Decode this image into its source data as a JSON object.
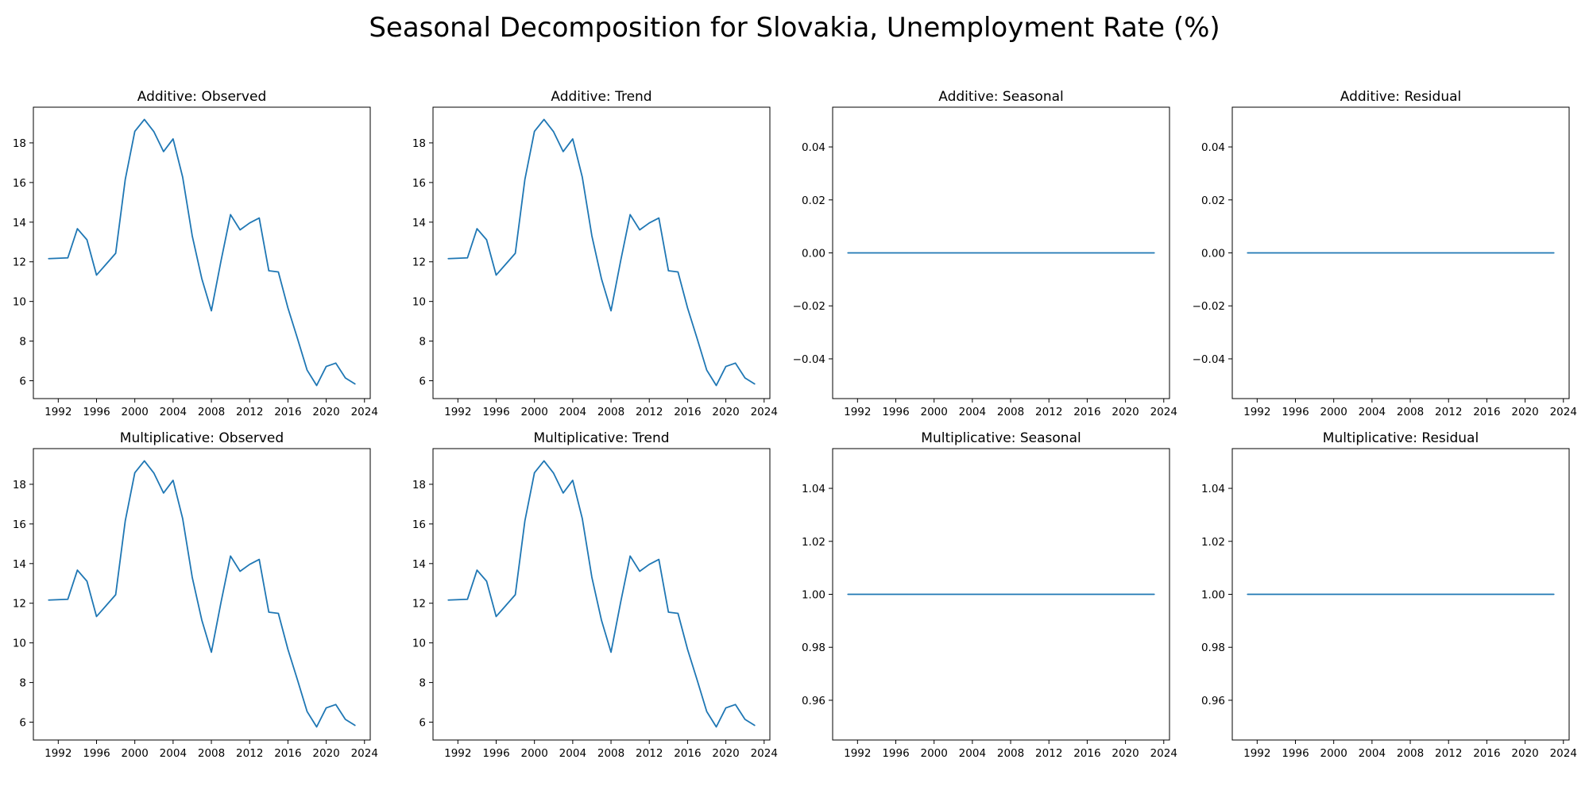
{
  "figure": {
    "title": "Seasonal Decomposition for Slovakia, Unemployment Rate (%)"
  },
  "colors": {
    "line": "#1f77b4"
  },
  "years": [
    1991,
    1992,
    1993,
    1994,
    1995,
    1996,
    1997,
    1998,
    1999,
    2000,
    2001,
    2002,
    2003,
    2004,
    2005,
    2006,
    2007,
    2008,
    2009,
    2010,
    2011,
    2012,
    2013,
    2014,
    2015,
    2016,
    2017,
    2018,
    2019,
    2020,
    2021,
    2022,
    2023
  ],
  "chart_data": [
    {
      "type": "line",
      "title": "Additive: Observed",
      "series": [
        {
          "values": [
            12.16,
            12.18,
            12.2,
            13.67,
            13.11,
            11.33,
            11.88,
            12.43,
            16.15,
            18.58,
            19.18,
            18.56,
            17.56,
            18.2,
            16.27,
            13.31,
            11.15,
            9.53,
            12.03,
            14.38,
            13.61,
            13.96,
            14.21,
            11.55,
            11.49,
            9.67,
            8.13,
            6.54,
            5.76,
            6.72,
            6.89,
            6.14,
            5.84
          ]
        }
      ],
      "ylim": [
        5.1,
        19.8
      ],
      "yticks": [
        6,
        8,
        10,
        12,
        14,
        16,
        18
      ],
      "ytick_labels": [
        "6",
        "8",
        "10",
        "12",
        "14",
        "16",
        "18"
      ],
      "xticks": [
        1992,
        1996,
        2000,
        2004,
        2008,
        2012,
        2016,
        2020,
        2024
      ],
      "xtick_labels": [
        "1992",
        "1996",
        "2000",
        "2004",
        "2008",
        "2012",
        "2016",
        "2020",
        "2024"
      ]
    },
    {
      "type": "line",
      "title": "Additive: Trend",
      "series": [
        {
          "values": [
            12.16,
            12.18,
            12.2,
            13.67,
            13.11,
            11.33,
            11.88,
            12.43,
            16.15,
            18.58,
            19.18,
            18.56,
            17.56,
            18.2,
            16.27,
            13.31,
            11.15,
            9.53,
            12.03,
            14.38,
            13.61,
            13.96,
            14.21,
            11.55,
            11.49,
            9.67,
            8.13,
            6.54,
            5.76,
            6.72,
            6.89,
            6.14,
            5.84
          ]
        }
      ],
      "ylim": [
        5.1,
        19.8
      ],
      "yticks": [
        6,
        8,
        10,
        12,
        14,
        16,
        18
      ],
      "ytick_labels": [
        "6",
        "8",
        "10",
        "12",
        "14",
        "16",
        "18"
      ],
      "xticks": [
        1992,
        1996,
        2000,
        2004,
        2008,
        2012,
        2016,
        2020,
        2024
      ],
      "xtick_labels": [
        "1992",
        "1996",
        "2000",
        "2004",
        "2008",
        "2012",
        "2016",
        "2020",
        "2024"
      ]
    },
    {
      "type": "line",
      "title": "Additive: Seasonal",
      "series": [
        {
          "values": [
            0,
            0,
            0,
            0,
            0,
            0,
            0,
            0,
            0,
            0,
            0,
            0,
            0,
            0,
            0,
            0,
            0,
            0,
            0,
            0,
            0,
            0,
            0,
            0,
            0,
            0,
            0,
            0,
            0,
            0,
            0,
            0,
            0
          ]
        }
      ],
      "ylim": [
        -0.055,
        0.055
      ],
      "yticks": [
        -0.04,
        -0.02,
        0,
        0.02,
        0.04
      ],
      "ytick_labels": [
        "−0.04",
        "−0.02",
        "0.00",
        "0.02",
        "0.04"
      ],
      "xticks": [
        1992,
        1996,
        2000,
        2004,
        2008,
        2012,
        2016,
        2020,
        2024
      ],
      "xtick_labels": [
        "1992",
        "1996",
        "2000",
        "2004",
        "2008",
        "2012",
        "2016",
        "2020",
        "2024"
      ]
    },
    {
      "type": "line",
      "title": "Additive: Residual",
      "series": [
        {
          "values": [
            0,
            0,
            0,
            0,
            0,
            0,
            0,
            0,
            0,
            0,
            0,
            0,
            0,
            0,
            0,
            0,
            0,
            0,
            0,
            0,
            0,
            0,
            0,
            0,
            0,
            0,
            0,
            0,
            0,
            0,
            0,
            0,
            0
          ]
        }
      ],
      "ylim": [
        -0.055,
        0.055
      ],
      "yticks": [
        -0.04,
        -0.02,
        0,
        0.02,
        0.04
      ],
      "ytick_labels": [
        "−0.04",
        "−0.02",
        "0.00",
        "0.02",
        "0.04"
      ],
      "xticks": [
        1992,
        1996,
        2000,
        2004,
        2008,
        2012,
        2016,
        2020,
        2024
      ],
      "xtick_labels": [
        "1992",
        "1996",
        "2000",
        "2004",
        "2008",
        "2012",
        "2016",
        "2020",
        "2024"
      ]
    },
    {
      "type": "line",
      "title": "Multiplicative: Observed",
      "series": [
        {
          "values": [
            12.16,
            12.18,
            12.2,
            13.67,
            13.11,
            11.33,
            11.88,
            12.43,
            16.15,
            18.58,
            19.18,
            18.56,
            17.56,
            18.2,
            16.27,
            13.31,
            11.15,
            9.53,
            12.03,
            14.38,
            13.61,
            13.96,
            14.21,
            11.55,
            11.49,
            9.67,
            8.13,
            6.54,
            5.76,
            6.72,
            6.89,
            6.14,
            5.84
          ]
        }
      ],
      "ylim": [
        5.1,
        19.8
      ],
      "yticks": [
        6,
        8,
        10,
        12,
        14,
        16,
        18
      ],
      "ytick_labels": [
        "6",
        "8",
        "10",
        "12",
        "14",
        "16",
        "18"
      ],
      "xticks": [
        1992,
        1996,
        2000,
        2004,
        2008,
        2012,
        2016,
        2020,
        2024
      ],
      "xtick_labels": [
        "1992",
        "1996",
        "2000",
        "2004",
        "2008",
        "2012",
        "2016",
        "2020",
        "2024"
      ]
    },
    {
      "type": "line",
      "title": "Multiplicative: Trend",
      "series": [
        {
          "values": [
            12.16,
            12.18,
            12.2,
            13.67,
            13.11,
            11.33,
            11.88,
            12.43,
            16.15,
            18.58,
            19.18,
            18.56,
            17.56,
            18.2,
            16.27,
            13.31,
            11.15,
            9.53,
            12.03,
            14.38,
            13.61,
            13.96,
            14.21,
            11.55,
            11.49,
            9.67,
            8.13,
            6.54,
            5.76,
            6.72,
            6.89,
            6.14,
            5.84
          ]
        }
      ],
      "ylim": [
        5.1,
        19.8
      ],
      "yticks": [
        6,
        8,
        10,
        12,
        14,
        16,
        18
      ],
      "ytick_labels": [
        "6",
        "8",
        "10",
        "12",
        "14",
        "16",
        "18"
      ],
      "xticks": [
        1992,
        1996,
        2000,
        2004,
        2008,
        2012,
        2016,
        2020,
        2024
      ],
      "xtick_labels": [
        "1992",
        "1996",
        "2000",
        "2004",
        "2008",
        "2012",
        "2016",
        "2020",
        "2024"
      ]
    },
    {
      "type": "line",
      "title": "Multiplicative: Seasonal",
      "series": [
        {
          "values": [
            1,
            1,
            1,
            1,
            1,
            1,
            1,
            1,
            1,
            1,
            1,
            1,
            1,
            1,
            1,
            1,
            1,
            1,
            1,
            1,
            1,
            1,
            1,
            1,
            1,
            1,
            1,
            1,
            1,
            1,
            1,
            1,
            1
          ]
        }
      ],
      "ylim": [
        0.945,
        1.055
      ],
      "yticks": [
        0.96,
        0.98,
        1.0,
        1.02,
        1.04
      ],
      "ytick_labels": [
        "0.96",
        "0.98",
        "1.00",
        "1.02",
        "1.04"
      ],
      "xticks": [
        1992,
        1996,
        2000,
        2004,
        2008,
        2012,
        2016,
        2020,
        2024
      ],
      "xtick_labels": [
        "1992",
        "1996",
        "2000",
        "2004",
        "2008",
        "2012",
        "2016",
        "2020",
        "2024"
      ]
    },
    {
      "type": "line",
      "title": "Multiplicative: Residual",
      "series": [
        {
          "values": [
            1,
            1,
            1,
            1,
            1,
            1,
            1,
            1,
            1,
            1,
            1,
            1,
            1,
            1,
            1,
            1,
            1,
            1,
            1,
            1,
            1,
            1,
            1,
            1,
            1,
            1,
            1,
            1,
            1,
            1,
            1,
            1,
            1
          ]
        }
      ],
      "ylim": [
        0.945,
        1.055
      ],
      "yticks": [
        0.96,
        0.98,
        1.0,
        1.02,
        1.04
      ],
      "ytick_labels": [
        "0.96",
        "0.98",
        "1.00",
        "1.02",
        "1.04"
      ],
      "xticks": [
        1992,
        1996,
        2000,
        2004,
        2008,
        2012,
        2016,
        2020,
        2024
      ],
      "xtick_labels": [
        "1992",
        "1996",
        "2000",
        "2004",
        "2008",
        "2012",
        "2016",
        "2020",
        "2024"
      ]
    }
  ]
}
